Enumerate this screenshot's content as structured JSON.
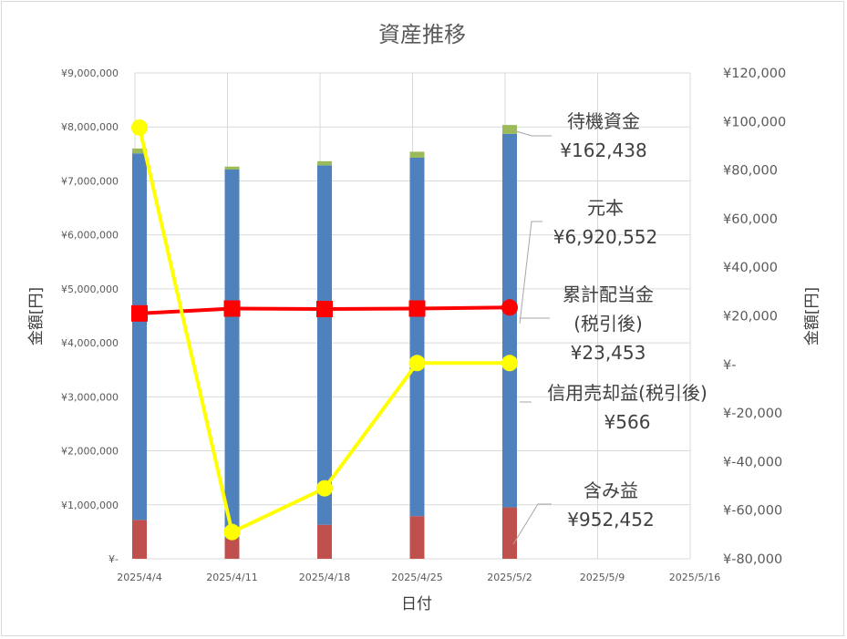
{
  "chart_data": {
    "type": "bar",
    "title": "資産推移",
    "xlabel": "日付",
    "ylabel_left": "金額[円]",
    "ylabel_right": "金額[円]",
    "x_ticks": [
      "2025/4/4",
      "2025/4/11",
      "2025/4/18",
      "2025/4/25",
      "2025/5/2",
      "2025/5/9",
      "2025/5/16"
    ],
    "y_left": {
      "min": 0,
      "max": 9000000,
      "step": 1000000,
      "tick_labels": [
        "¥-",
        "¥1,000,000",
        "¥2,000,000",
        "¥3,000,000",
        "¥4,000,000",
        "¥5,000,000",
        "¥6,000,000",
        "¥7,000,000",
        "¥8,000,000",
        "¥9,000,000"
      ]
    },
    "y_right": {
      "min": -80000,
      "max": 120000,
      "step": 20000,
      "tick_labels": [
        "¥-80,000",
        "¥-60,000",
        "¥-40,000",
        "¥-20,000",
        "¥-",
        "¥20,000",
        "¥40,000",
        "¥60,000",
        "¥80,000",
        "¥100,000",
        "¥120,000"
      ]
    },
    "categories": [
      "2025/4/4",
      "2025/4/11",
      "2025/4/18",
      "2025/4/25",
      "2025/5/2"
    ],
    "grid": true,
    "stacked_bars": [
      {
        "name": "含み益",
        "color": "#c0504d",
        "values": [
          720000,
          380000,
          630000,
          790000,
          952452
        ]
      },
      {
        "name": "元本",
        "color": "#4f81bd",
        "values": [
          6790000,
          6830000,
          6660000,
          6640000,
          6920552
        ]
      },
      {
        "name": "待機資金",
        "color": "#9bbb59",
        "values": [
          90000,
          55000,
          75000,
          110000,
          162438
        ]
      }
    ],
    "lines": [
      {
        "name": "累計配当金(税引後)",
        "color": "#ff0000",
        "marker": "square",
        "axis": "right",
        "values": [
          21000,
          23000,
          22800,
          23000,
          23453
        ]
      },
      {
        "name": "信用売却益(税引後)",
        "color": "#ffff00",
        "marker": "circle",
        "axis": "right",
        "values": [
          97500,
          -69000,
          -51000,
          566,
          566
        ]
      }
    ],
    "annotations": [
      {
        "lines": [
          "待機資金",
          "¥162,438"
        ]
      },
      {
        "lines": [
          "元本",
          "¥6,920,552"
        ]
      },
      {
        "lines": [
          "累計配当金",
          "(税引後)",
          "¥23,453"
        ]
      },
      {
        "lines": [
          "信用売却益(税引後)",
          "¥566"
        ]
      },
      {
        "lines": [
          "含み益",
          "¥952,452"
        ]
      }
    ]
  }
}
